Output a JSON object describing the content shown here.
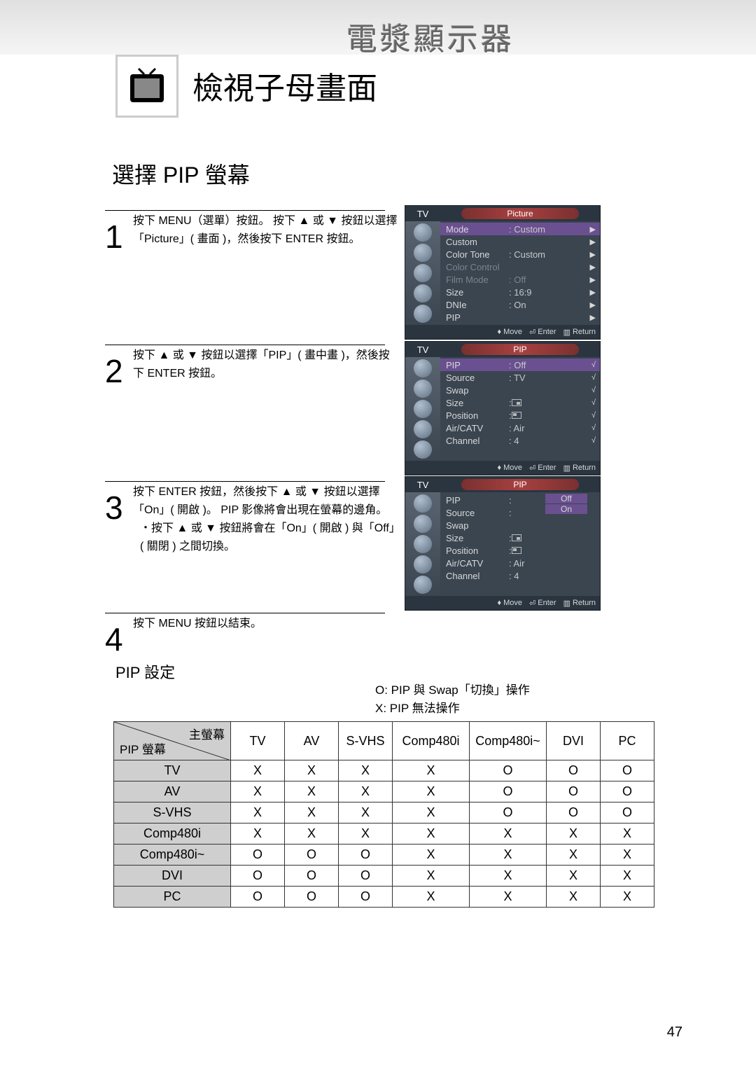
{
  "header_title": "電漿顯示器",
  "page_title": "檢視子母畫面",
  "section_title": "選擇 PIP 螢幕",
  "steps": {
    "1": {
      "num": "1",
      "text": "按下 MENU（選單）按鈕。 按下 ▲ 或 ▼ 按鈕以選擇「Picture」( 畫面 )，然後按下 ENTER 按鈕。"
    },
    "2": {
      "num": "2",
      "text": "按下 ▲ 或 ▼ 按鈕以選擇「PIP」( 畫中畫 )，然後按下 ENTER 按鈕。"
    },
    "3": {
      "num": "3",
      "text": "按下 ENTER 按鈕，然後按下 ▲ 或 ▼ 按鈕以選擇「On」( 開啟 )。 PIP 影像將會出現在螢幕的邊角。",
      "sub": "・按下 ▲ 或 ▼ 按鈕將會在「On」( 開啟 ) 與「Off」( 關閉 ) 之間切換。"
    },
    "4": {
      "num": "4",
      "text": "按下 MENU 按鈕以結束。"
    }
  },
  "osd1": {
    "tv": "TV",
    "title": "Picture",
    "items": [
      {
        "label": "Mode",
        "val": ": Custom",
        "sel": true,
        "arrow": "▶"
      },
      {
        "label": "Custom",
        "val": "",
        "arrow": "▶"
      },
      {
        "label": "Color Tone",
        "val": ": Custom",
        "arrow": "▶"
      },
      {
        "label": "Color Control",
        "val": "",
        "dim": true,
        "arrow": "▶"
      },
      {
        "label": "Film Mode",
        "val": ": Off",
        "dim": true,
        "arrow": "▶"
      },
      {
        "label": "Size",
        "val": ": 16:9",
        "arrow": "▶"
      },
      {
        "label": "DNIe",
        "val": ": On",
        "arrow": "▶"
      },
      {
        "label": "PIP",
        "val": "",
        "arrow": "▶"
      }
    ],
    "move": "Move",
    "enter": "Enter",
    "return": "Return"
  },
  "osd2": {
    "tv": "TV",
    "title": "PIP",
    "items": [
      {
        "label": "PIP",
        "val": ": Off",
        "sel": true,
        "arrow": "√"
      },
      {
        "label": "Source",
        "val": ": TV",
        "arrow": "√"
      },
      {
        "label": "Swap",
        "val": "",
        "arrow": "√"
      },
      {
        "label": "Size",
        "val": ":",
        "icon": "br",
        "arrow": "√"
      },
      {
        "label": "Position",
        "val": ":",
        "icon": "tl",
        "arrow": "√"
      },
      {
        "label": "Air/CATV",
        "val": ": Air",
        "arrow": "√"
      },
      {
        "label": "Channel",
        "val": ": 4",
        "arrow": "√"
      }
    ],
    "move": "Move",
    "enter": "Enter",
    "return": "Return"
  },
  "osd3": {
    "tv": "TV",
    "title": "PIP",
    "items": [
      {
        "label": "PIP",
        "val": ":"
      },
      {
        "label": "Source",
        "val": ":"
      },
      {
        "label": "Swap",
        "val": ""
      },
      {
        "label": "Size",
        "val": ":",
        "icon": "br"
      },
      {
        "label": "Position",
        "val": ":",
        "icon": "tl"
      },
      {
        "label": "Air/CATV",
        "val": ": Air"
      },
      {
        "label": "Channel",
        "val": ": 4"
      }
    ],
    "opts": [
      "Off",
      "On"
    ],
    "move": "Move",
    "enter": "Enter",
    "return": "Return"
  },
  "pip_settings_title": "PIP 設定",
  "legend": {
    "o": "O: PIP 與 Swap「切換」操作",
    "x": "X: PIP 無法操作"
  },
  "table": {
    "corner_main": "主螢幕",
    "corner_pip": "PIP 螢幕",
    "cols": [
      "TV",
      "AV",
      "S-VHS",
      "Comp480i",
      "Comp480i~",
      "DVI",
      "PC"
    ],
    "rows": [
      {
        "h": "TV",
        "c": [
          "X",
          "X",
          "X",
          "X",
          "O",
          "O",
          "O"
        ]
      },
      {
        "h": "AV",
        "c": [
          "X",
          "X",
          "X",
          "X",
          "O",
          "O",
          "O"
        ]
      },
      {
        "h": "S-VHS",
        "c": [
          "X",
          "X",
          "X",
          "X",
          "O",
          "O",
          "O"
        ]
      },
      {
        "h": "Comp480i",
        "c": [
          "X",
          "X",
          "X",
          "X",
          "X",
          "X",
          "X"
        ]
      },
      {
        "h": "Comp480i~",
        "c": [
          "O",
          "O",
          "O",
          "X",
          "X",
          "X",
          "X"
        ]
      },
      {
        "h": "DVI",
        "c": [
          "O",
          "O",
          "O",
          "X",
          "X",
          "X",
          "X"
        ]
      },
      {
        "h": "PC",
        "c": [
          "O",
          "O",
          "O",
          "X",
          "X",
          "X",
          "X"
        ]
      }
    ]
  },
  "page_number": "47"
}
